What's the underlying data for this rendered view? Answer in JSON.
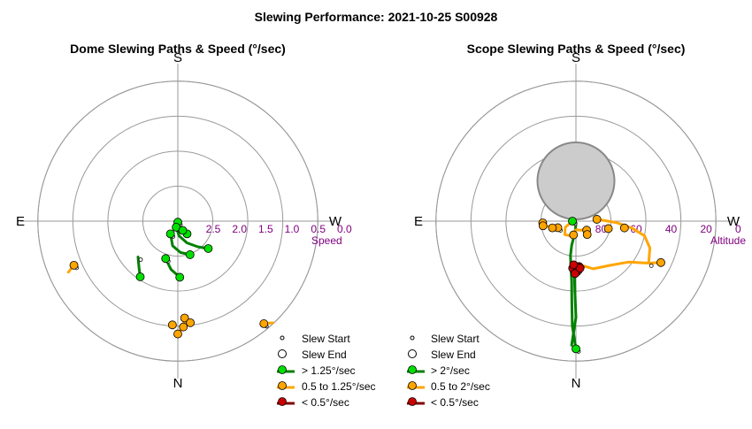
{
  "title": "Slewing Performance: 2021-10-25 S00928",
  "colors": {
    "fast": "#00e000",
    "fast_line": "#008000",
    "medium": "#ffa500",
    "slow": "#cc0000",
    "slow_line": "#800000",
    "purple": "#800080",
    "grid": "#999999",
    "sun": "#cccccc"
  },
  "chart_data": [
    {
      "type": "scatter",
      "projection": "polar",
      "title": "Dome Slewing Paths & Speed (°/sec)",
      "directions": {
        "top": "S",
        "bottom": "N",
        "left": "E",
        "right": "W"
      },
      "radial_axis": {
        "label": "Speed",
        "ticks": [
          "2.5",
          "2.0",
          "1.5",
          "1.0",
          "0.5",
          "0.0"
        ],
        "tick_values": [
          2.5,
          2.0,
          1.5,
          1.0,
          0.5,
          0.0
        ],
        "range": [
          3.0,
          0.0
        ]
      },
      "legend": {
        "position": "bottom-right",
        "entries": [
          {
            "label": "Slew Start",
            "kind": "start"
          },
          {
            "label": "Slew End",
            "kind": "end"
          },
          {
            "label": "> 1.25°/sec",
            "kind": "fast"
          },
          {
            "label": "0.5 to 1.25°/sec",
            "kind": "medium"
          },
          {
            "label": "< 0.5°/sec",
            "kind": "slow"
          }
        ]
      },
      "paths": [
        {
          "class": "fast",
          "points": [
            [
              180,
              2.98
            ],
            [
              196,
              2.9
            ],
            [
              208,
              2.8
            ],
            [
              216,
              2.7
            ]
          ]
        },
        {
          "class": "fast",
          "points": [
            [
              165,
              2.88
            ],
            [
              185,
              2.72
            ],
            [
              203,
              2.55
            ],
            [
              218,
              2.38
            ],
            [
              228,
              2.22
            ]
          ]
        },
        {
          "class": "fast",
          "points": [
            [
              150,
              2.72
            ],
            [
              168,
              2.52
            ],
            [
              185,
              2.4
            ],
            [
              200,
              2.32
            ]
          ]
        },
        {
          "class": "fast",
          "points": [
            [
              162,
              2.25
            ],
            [
              172,
              2.07
            ],
            [
              182,
              1.93
            ]
          ]
        },
        {
          "class": "fast",
          "points": [
            [
              132,
              1.98
            ],
            [
              140,
              1.85
            ],
            [
              146,
              1.72
            ]
          ]
        },
        {
          "class": "medium",
          "points": [
            [
              184,
              1.15
            ],
            [
              183,
              0.98
            ],
            [
              180,
              0.85
            ]
          ]
        },
        {
          "class": "medium",
          "points": [
            [
              220,
              0.45
            ],
            [
              223,
              0.35
            ]
          ]
        },
        {
          "class": "medium",
          "points": [
            [
              113,
              0.85
            ],
            [
              115,
              0.7
            ]
          ]
        }
      ],
      "markers": [
        {
          "class": "fast",
          "points": [
            [
              180,
              2.98
            ],
            [
              165,
              2.88
            ],
            [
              150,
              2.72
            ],
            [
              216,
              2.7
            ],
            [
              162,
              2.25
            ],
            [
              200,
              2.32
            ],
            [
              182,
              1.93
            ],
            [
              208,
              2.8
            ],
            [
              146,
              1.72
            ],
            [
              228,
              2.22
            ]
          ]
        },
        {
          "class": "medium",
          "points": [
            [
              184,
              1.15
            ],
            [
              180,
              0.85
            ],
            [
              183,
              0.98
            ],
            [
              187,
              1.05
            ],
            [
              177,
              1.02
            ],
            [
              220,
              0.45
            ],
            [
              113,
              0.85
            ]
          ]
        }
      ]
    },
    {
      "type": "scatter",
      "projection": "polar",
      "title": "Scope Slewing Paths & Speed (°/sec)",
      "directions": {
        "top": "S",
        "bottom": "N",
        "left": "E",
        "right": "W"
      },
      "radial_axis": {
        "label": "Altitude",
        "ticks": [
          "80",
          "60",
          "40",
          "20",
          "0"
        ],
        "tick_values": [
          80,
          60,
          40,
          20,
          0
        ],
        "range": [
          90,
          0
        ]
      },
      "legend": {
        "position": "bottom-right",
        "entries": [
          {
            "label": "Slew Start",
            "kind": "start"
          },
          {
            "label": "Slew End",
            "kind": "end"
          },
          {
            "label": "> 2°/sec",
            "kind": "fast"
          },
          {
            "label": "0.5 to 2°/sec",
            "kind": "medium"
          },
          {
            "label": "< 0.5°/sec",
            "kind": "slow"
          }
        ]
      },
      "sun": {
        "azimuth": 0,
        "altitude": 67,
        "radius_deg": 11
      },
      "paths": [
        {
          "class": "fast",
          "points": [
            [
              180,
              17
            ],
            [
              178,
              30
            ],
            [
              177,
              45
            ],
            [
              176,
              55
            ],
            [
              174,
              63
            ],
            [
              171,
              70
            ],
            [
              170,
              76
            ],
            [
              176,
              84
            ],
            [
              182,
              89
            ],
            [
              90,
              88
            ]
          ]
        },
        {
          "class": "fast",
          "points": [
            [
              178,
              19
            ],
            [
              180,
              35
            ],
            [
              179,
              52
            ],
            [
              178,
              62
            ]
          ]
        },
        {
          "class": "medium",
          "points": [
            [
              110,
              79
            ],
            [
              106,
              76
            ],
            [
              98,
              72
            ],
            [
              93,
              71
            ]
          ]
        },
        {
          "class": "medium",
          "points": [
            [
              185,
              65
            ],
            [
              200,
              61
            ],
            [
              218,
              58
            ],
            [
              232,
              52
            ],
            [
              240,
              42
            ],
            [
              244,
              36
            ]
          ]
        },
        {
          "class": "medium",
          "points": [
            [
              240,
              42
            ],
            [
              250,
              45
            ],
            [
              258,
              50
            ],
            [
              263,
              58
            ],
            [
              268,
              67
            ],
            [
              275,
              78
            ]
          ]
        },
        {
          "class": "medium",
          "points": [
            [
              90,
              88
            ],
            [
              120,
              83
            ],
            [
              140,
              80
            ],
            [
              160,
              81
            ],
            [
              180,
              85
            ],
            [
              210,
              84
            ],
            [
              240,
              82
            ]
          ]
        }
      ],
      "markers": [
        {
          "class": "fast",
          "points": [
            [
              180,
              17
            ],
            [
              90,
              88
            ]
          ]
        },
        {
          "class": "medium",
          "points": [
            [
              244,
              36
            ],
            [
              275,
              78
            ],
            [
              257,
              71
            ],
            [
              262,
              62
            ],
            [
              110,
              79
            ],
            [
              106,
              76
            ],
            [
              93,
              71
            ],
            [
              98,
              71
            ],
            [
              170,
              82
            ],
            [
              230,
              82
            ],
            [
              220,
              80
            ]
          ]
        },
        {
          "class": "slow",
          "points": [
            [
              181,
              61
            ],
            [
              183,
              62
            ],
            [
              178,
              62
            ],
            [
              184,
              64
            ],
            [
              176,
              63
            ],
            [
              181,
              64
            ],
            [
              179,
              60
            ],
            [
              185,
              63
            ],
            [
              177,
              65
            ]
          ]
        }
      ]
    }
  ]
}
